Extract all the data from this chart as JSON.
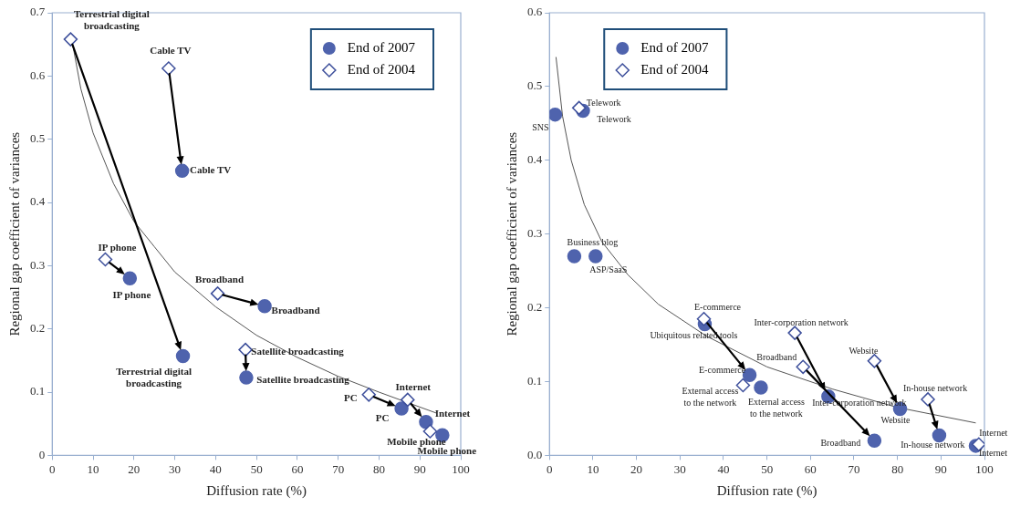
{
  "chart_data": [
    {
      "type": "scatter",
      "xlabel": "Diffusion rate (%)",
      "ylabel": "Regional gap coefficient of variances",
      "xlim": [
        0,
        100
      ],
      "ylim": [
        0,
        0.7
      ],
      "xticks": [
        0,
        10,
        20,
        30,
        40,
        50,
        60,
        70,
        80,
        90,
        100
      ],
      "yticks": [
        0,
        0.1,
        0.2,
        0.3,
        0.4,
        0.5,
        0.6,
        0.7
      ],
      "legend": "top right",
      "series": [
        {
          "name": "End of 2007",
          "color": "#4f63ad",
          "marker": "circle",
          "x": [
            32,
            31.8,
            19,
            52,
            47.5,
            85.5,
            91.5,
            95.5
          ],
          "values": [
            0.157,
            0.45,
            0.28,
            0.236,
            0.123,
            0.074,
            0.053,
            0.032
          ]
        },
        {
          "name": "End of 2004",
          "color": "#3d4f9b",
          "marker": "diamond",
          "x": [
            4.5,
            28.5,
            13,
            40.5,
            47.3,
            77.5,
            87,
            92.5
          ],
          "values": [
            0.658,
            0.612,
            0.31,
            0.256,
            0.167,
            0.096,
            0.088,
            0.038
          ]
        },
        {
          "type": "line",
          "color": "#555555",
          "marker": "none",
          "x": [
            5,
            7,
            10,
            15,
            20,
            25,
            30,
            40,
            50,
            60,
            70,
            80,
            94
          ],
          "values": [
            0.65,
            0.58,
            0.51,
            0.43,
            0.37,
            0.33,
            0.29,
            0.235,
            0.19,
            0.155,
            0.125,
            0.1,
            0.067
          ]
        }
      ],
      "annotations": [
        {
          "text": "Terrestrial digital\nbroadcasting",
          "x": 4.5,
          "y": 0.658
        },
        {
          "text": "Cable TV",
          "x": 28.5,
          "y": 0.612
        },
        {
          "text": "Cable TV",
          "x": 31.8,
          "y": 0.45
        },
        {
          "text": "IP phone",
          "x": 13,
          "y": 0.31
        },
        {
          "text": "IP phone",
          "x": 19,
          "y": 0.28
        },
        {
          "text": "Terrestrial digital\nbroadcasting",
          "x": 32,
          "y": 0.157
        },
        {
          "text": "Broadband",
          "x": 40.5,
          "y": 0.256
        },
        {
          "text": "Broadband",
          "x": 52,
          "y": 0.236
        },
        {
          "text": "Satellite broadcasting",
          "x": 47.3,
          "y": 0.167
        },
        {
          "text": "Satellite broadcasting",
          "x": 47.5,
          "y": 0.123
        },
        {
          "text": "PC",
          "x": 77.5,
          "y": 0.096
        },
        {
          "text": "PC",
          "x": 85.5,
          "y": 0.074
        },
        {
          "text": "Internet",
          "x": 87,
          "y": 0.088
        },
        {
          "text": "Internet",
          "x": 91.5,
          "y": 0.053
        },
        {
          "text": "Mobile phone",
          "x": 92.5,
          "y": 0.038
        },
        {
          "text": "Mobile phone",
          "x": 95.5,
          "y": 0.032
        }
      ]
    },
    {
      "type": "scatter",
      "xlabel": "Diffusion rate (%)",
      "ylabel": "Regional gap coefficient of variances",
      "xlim": [
        0,
        100
      ],
      "ylim": [
        0,
        0.6
      ],
      "xticks": [
        0,
        10,
        20,
        30,
        40,
        50,
        60,
        70,
        80,
        90,
        100
      ],
      "yticks": [
        {
          "value": 0,
          "label": "0.0"
        },
        0.1,
        0.2,
        0.3,
        0.4,
        0.5,
        0.6
      ],
      "legend": "top left",
      "series": [
        {
          "name": "End of 2007",
          "color": "#4f63ad",
          "marker": "circle",
          "x": [
            1.3,
            7.7,
            5.7,
            10.6,
            35.7,
            46,
            48.6,
            74.7,
            64.1,
            80.6,
            89.6,
            98
          ],
          "values": [
            0.462,
            0.467,
            0.27,
            0.27,
            0.178,
            0.109,
            0.092,
            0.02,
            0.08,
            0.063,
            0.027,
            0.013
          ]
        },
        {
          "name": "End of 2004",
          "color": "#3d4f9b",
          "marker": "diamond",
          "x": [
            null,
            6.8,
            null,
            null,
            null,
            35.5,
            44.5,
            58.3,
            56.4,
            74.7,
            87,
            98.7
          ],
          "values": [
            null,
            0.471,
            null,
            null,
            null,
            0.185,
            0.095,
            0.12,
            0.166,
            0.128,
            0.076,
            0.015
          ]
        },
        {
          "type": "line",
          "color": "#555555",
          "marker": "none",
          "x": [
            1.5,
            3,
            5,
            8,
            12,
            18,
            25,
            36,
            50,
            65,
            80,
            98
          ],
          "values": [
            0.54,
            0.46,
            0.4,
            0.34,
            0.29,
            0.245,
            0.205,
            0.162,
            0.12,
            0.09,
            0.065,
            0.044
          ]
        }
      ],
      "annotations": [
        {
          "text": "Telework",
          "x": 6.8,
          "y": 0.471
        },
        {
          "text": "Telework",
          "x": 7.7,
          "y": 0.467
        },
        {
          "text": "SNS",
          "x": 1.3,
          "y": 0.462
        },
        {
          "text": "Business blog",
          "x": 5.7,
          "y": 0.27
        },
        {
          "text": "ASP/SaaS",
          "x": 10.6,
          "y": 0.27
        },
        {
          "text": "E-commerce",
          "x": 35.5,
          "y": 0.185
        },
        {
          "text": "Ubiquitous related tools",
          "x": 35.7,
          "y": 0.178
        },
        {
          "text": "E-commerce",
          "x": 46,
          "y": 0.109
        },
        {
          "text": "External access\nto the network",
          "x": 44.5,
          "y": 0.095
        },
        {
          "text": "External access\nto the network",
          "x": 48.6,
          "y": 0.092
        },
        {
          "text": "Broadband",
          "x": 58.3,
          "y": 0.12
        },
        {
          "text": "Inter-corporation network",
          "x": 56.4,
          "y": 0.166
        },
        {
          "text": "Inter-corporation network",
          "x": 64.1,
          "y": 0.08
        },
        {
          "text": "Broadband",
          "x": 74.7,
          "y": 0.02
        },
        {
          "text": "Website",
          "x": 74.7,
          "y": 0.128
        },
        {
          "text": "Website",
          "x": 80.6,
          "y": 0.063
        },
        {
          "text": "In-house network",
          "x": 87,
          "y": 0.076
        },
        {
          "text": "In-house network",
          "x": 89.6,
          "y": 0.027
        },
        {
          "text": "Internet",
          "x": 98.7,
          "y": 0.015
        },
        {
          "text": "Internet",
          "x": 98,
          "y": 0.013
        }
      ]
    }
  ]
}
